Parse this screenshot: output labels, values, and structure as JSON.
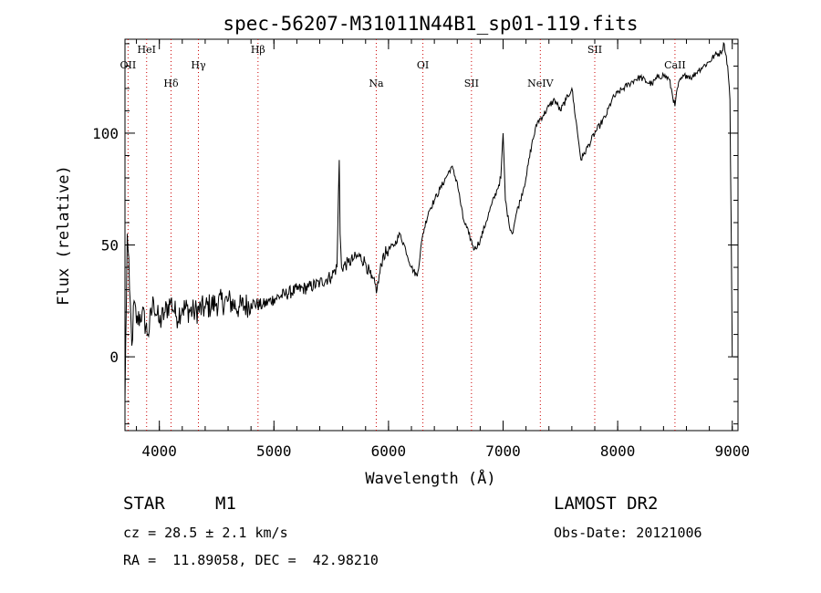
{
  "chart_data": {
    "type": "line",
    "title": "spec-56207-M31011N44B1_sp01-119.fits",
    "xlabel": "Wavelength (Å)",
    "ylabel": "Flux (relative)",
    "xlim": [
      3700,
      9050
    ],
    "ylim": [
      -33,
      142
    ],
    "x_ticks": [
      4000,
      5000,
      6000,
      7000,
      8000,
      9000
    ],
    "y_ticks": [
      0,
      50,
      100
    ],
    "grid": false,
    "line_color": "#000000",
    "marker_color": "#cc0000",
    "line_markers": [
      {
        "label": "OII",
        "x": 3727
      },
      {
        "label": "HeI",
        "x": 3889
      },
      {
        "label": "Hδ",
        "x": 4102
      },
      {
        "label": "Hγ",
        "x": 4341
      },
      {
        "label": "Hβ",
        "x": 4861
      },
      {
        "label": "Na",
        "x": 5893
      },
      {
        "label": "OI",
        "x": 6300
      },
      {
        "label": "SII",
        "x": 6724
      },
      {
        "label": "NeIV",
        "x": 7325
      },
      {
        "label": "SII",
        "x": 7800
      },
      {
        "label": "CaII",
        "x": 8500
      }
    ],
    "spectrum": {
      "x": [
        3700,
        3720,
        3740,
        3760,
        3780,
        3800,
        3850,
        3900,
        3950,
        4000,
        4050,
        4100,
        4150,
        4200,
        4300,
        4400,
        4500,
        4600,
        4700,
        4800,
        4900,
        5000,
        5100,
        5200,
        5300,
        5400,
        5500,
        5550,
        5570,
        5577,
        5590,
        5650,
        5700,
        5750,
        5800,
        5850,
        5900,
        5950,
        6000,
        6050,
        6100,
        6150,
        6200,
        6250,
        6300,
        6350,
        6400,
        6450,
        6500,
        6550,
        6600,
        6650,
        6700,
        6750,
        6800,
        6850,
        6900,
        6950,
        6980,
        7000,
        7020,
        7050,
        7080,
        7100,
        7120,
        7150,
        7200,
        7250,
        7300,
        7350,
        7400,
        7450,
        7500,
        7550,
        7600,
        7650,
        7680,
        7700,
        7750,
        7800,
        7850,
        7900,
        7950,
        8000,
        8050,
        8100,
        8150,
        8200,
        8250,
        8300,
        8350,
        8400,
        8450,
        8500,
        8520,
        8550,
        8600,
        8650,
        8700,
        8750,
        8800,
        8850,
        8900,
        8930,
        8960,
        8980,
        8990,
        9000
      ],
      "y": [
        -20,
        55,
        30,
        5,
        25,
        15,
        20,
        10,
        25,
        15,
        20,
        25,
        18,
        22,
        20,
        22,
        24,
        25,
        22,
        24,
        23,
        26,
        28,
        30,
        31,
        33,
        36,
        40,
        88,
        55,
        40,
        42,
        44,
        45,
        42,
        35,
        30,
        45,
        48,
        50,
        55,
        48,
        40,
        36,
        55,
        65,
        70,
        75,
        80,
        85,
        78,
        62,
        55,
        48,
        52,
        60,
        68,
        75,
        80,
        100,
        70,
        60,
        55,
        60,
        65,
        70,
        80,
        95,
        105,
        108,
        112,
        115,
        110,
        115,
        120,
        100,
        88,
        90,
        95,
        100,
        104,
        108,
        115,
        118,
        120,
        122,
        124,
        125,
        123,
        122,
        125,
        126,
        124,
        112,
        120,
        124,
        126,
        125,
        128,
        130,
        132,
        135,
        136,
        140,
        130,
        115,
        60,
        0
      ]
    }
  },
  "info": {
    "object_class": "STAR",
    "subclass": "M1",
    "survey": "LAMOST DR2",
    "cz": "cz = 28.5 ± 2.1 km/s",
    "obs_date": "Obs-Date: 20121006",
    "coords": "RA =  11.89058, DEC =  42.98210"
  }
}
